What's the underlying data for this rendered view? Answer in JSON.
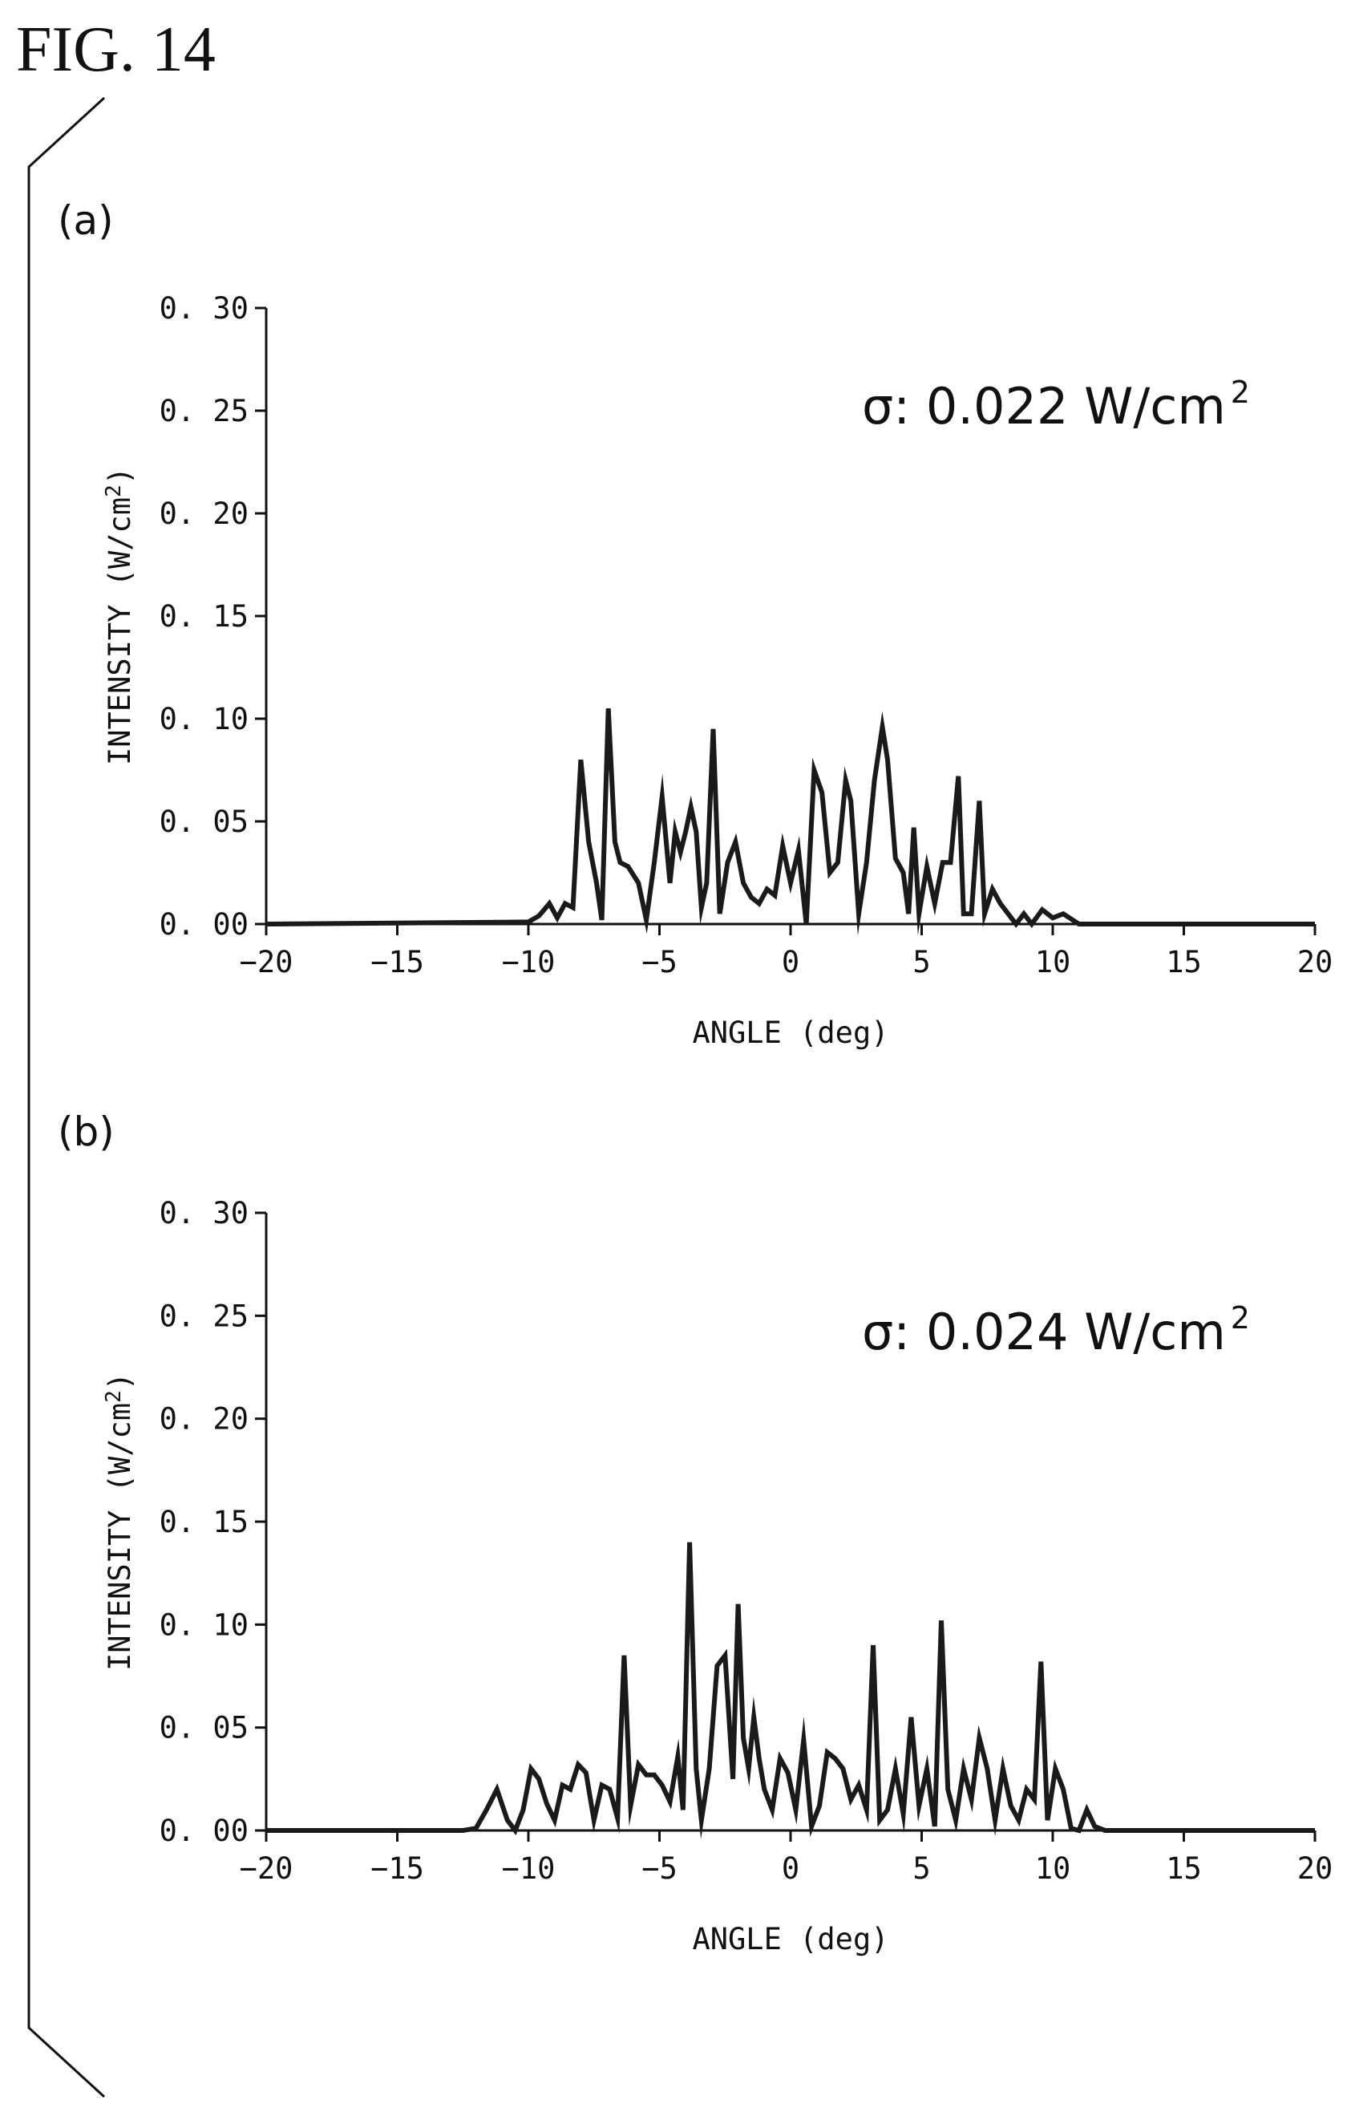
{
  "figure": {
    "title": "FIG. 14"
  },
  "chart_data": [
    {
      "type": "line",
      "panel": "(a)",
      "annotation": {
        "text": "σ: 0.022 W/cm",
        "sup": "2"
      },
      "xlabel": "ANGLE (deg)",
      "ylabel": "INTENSITY (W/cm2)",
      "xlim": [
        -20,
        20
      ],
      "ylim": [
        0,
        0.3
      ],
      "xticks": [
        "−20",
        "−15",
        "−10",
        "−5",
        "0",
        "5",
        "10",
        "15",
        "20"
      ],
      "yticks": [
        "0. 00",
        "0. 05",
        "0. 10",
        "0. 15",
        "0. 20",
        "0. 25",
        "0. 30"
      ],
      "grid": false,
      "legend": "none",
      "series": [
        {
          "x": [
            -20,
            -10,
            -9.6,
            -9.2,
            -8.9,
            -8.6,
            -8.3,
            -8.0,
            -7.7,
            -7.4,
            -7.2,
            -6.95,
            -6.7,
            -6.5,
            -6.2,
            -5.8,
            -5.5,
            -5.2,
            -4.9,
            -4.6,
            -4.4,
            -4.2,
            -4.0,
            -3.8,
            -3.6,
            -3.4,
            -3.2,
            -2.95,
            -2.7,
            -2.4,
            -2.1,
            -1.8,
            -1.5,
            -1.2,
            -0.9,
            -0.6,
            -0.3,
            0,
            0.3,
            0.6,
            0.9,
            1.2,
            1.5,
            1.8,
            2.1,
            2.3,
            2.6,
            2.9,
            3.2,
            3.5,
            3.7,
            4.0,
            4.3,
            4.5,
            4.7,
            4.9,
            5.2,
            5.5,
            5.8,
            6.1,
            6.4,
            6.6,
            6.9,
            7.2,
            7.4,
            7.7,
            8.0,
            8.3,
            8.6,
            8.9,
            9.2,
            9.6,
            10.0,
            10.4,
            11,
            20
          ],
          "y": [
            0.0,
            0.001,
            0.004,
            0.01,
            0.003,
            0.01,
            0.008,
            0.08,
            0.04,
            0.02,
            0.002,
            0.105,
            0.04,
            0.03,
            0.028,
            0.02,
            0.002,
            0.03,
            0.062,
            0.02,
            0.045,
            0.035,
            0.045,
            0.057,
            0.045,
            0.008,
            0.02,
            0.095,
            0.005,
            0.03,
            0.04,
            0.02,
            0.013,
            0.01,
            0.017,
            0.014,
            0.038,
            0.02,
            0.036,
            0.0,
            0.075,
            0.064,
            0.025,
            0.03,
            0.07,
            0.06,
            0.005,
            0.03,
            0.07,
            0.096,
            0.08,
            0.032,
            0.025,
            0.005,
            0.047,
            0.005,
            0.028,
            0.01,
            0.03,
            0.03,
            0.072,
            0.005,
            0.005,
            0.06,
            0.005,
            0.017,
            0.01,
            0.005,
            0.0,
            0.005,
            0.0,
            0.007,
            0.003,
            0.005,
            0.0,
            0.0
          ]
        }
      ]
    },
    {
      "type": "line",
      "panel": "(b)",
      "annotation": {
        "text": "σ: 0.024 W/cm",
        "sup": "2"
      },
      "xlabel": "ANGLE (deg)",
      "ylabel": "INTENSITY (W/cm2)",
      "xlim": [
        -20,
        20
      ],
      "ylim": [
        0,
        0.3
      ],
      "xticks": [
        "−20",
        "−15",
        "−10",
        "−5",
        "0",
        "5",
        "10",
        "15",
        "20"
      ],
      "yticks": [
        "0. 00",
        "0. 05",
        "0. 10",
        "0. 15",
        "0. 20",
        "0. 25",
        "0. 30"
      ],
      "grid": false,
      "legend": "none",
      "series": [
        {
          "x": [
            -20,
            -12.5,
            -12.0,
            -11.6,
            -11.2,
            -10.8,
            -10.5,
            -10.2,
            -9.9,
            -9.6,
            -9.3,
            -9.0,
            -8.7,
            -8.4,
            -8.1,
            -7.8,
            -7.5,
            -7.2,
            -6.9,
            -6.6,
            -6.35,
            -6.1,
            -5.8,
            -5.5,
            -5.2,
            -4.9,
            -4.6,
            -4.3,
            -4.1,
            -3.85,
            -3.6,
            -3.4,
            -3.1,
            -2.8,
            -2.5,
            -2.2,
            -2.0,
            -1.8,
            -1.6,
            -1.4,
            -1.2,
            -1.0,
            -0.7,
            -0.4,
            -0.1,
            0.2,
            0.5,
            0.8,
            1.1,
            1.4,
            1.7,
            2.0,
            2.3,
            2.6,
            2.9,
            3.15,
            3.4,
            3.7,
            4.0,
            4.3,
            4.6,
            4.9,
            5.2,
            5.5,
            5.75,
            6.0,
            6.3,
            6.6,
            6.9,
            7.2,
            7.5,
            7.8,
            8.1,
            8.4,
            8.7,
            9.0,
            9.3,
            9.55,
            9.8,
            10.1,
            10.4,
            10.7,
            11.0,
            11.3,
            11.6,
            12.0,
            20
          ],
          "y": [
            0.0,
            0.0,
            0.001,
            0.01,
            0.02,
            0.005,
            0.0,
            0.01,
            0.03,
            0.025,
            0.013,
            0.005,
            0.022,
            0.02,
            0.032,
            0.028,
            0.005,
            0.022,
            0.02,
            0.006,
            0.085,
            0.012,
            0.032,
            0.027,
            0.027,
            0.022,
            0.014,
            0.036,
            0.01,
            0.14,
            0.03,
            0.005,
            0.03,
            0.08,
            0.085,
            0.025,
            0.11,
            0.045,
            0.03,
            0.055,
            0.035,
            0.02,
            0.01,
            0.035,
            0.028,
            0.01,
            0.044,
            0.002,
            0.012,
            0.038,
            0.035,
            0.03,
            0.015,
            0.022,
            0.01,
            0.09,
            0.005,
            0.01,
            0.03,
            0.008,
            0.055,
            0.012,
            0.03,
            0.002,
            0.102,
            0.02,
            0.005,
            0.03,
            0.015,
            0.045,
            0.03,
            0.005,
            0.03,
            0.012,
            0.005,
            0.02,
            0.015,
            0.082,
            0.005,
            0.03,
            0.02,
            0.001,
            0.0,
            0.01,
            0.002,
            0.0,
            0.0
          ]
        }
      ]
    }
  ]
}
